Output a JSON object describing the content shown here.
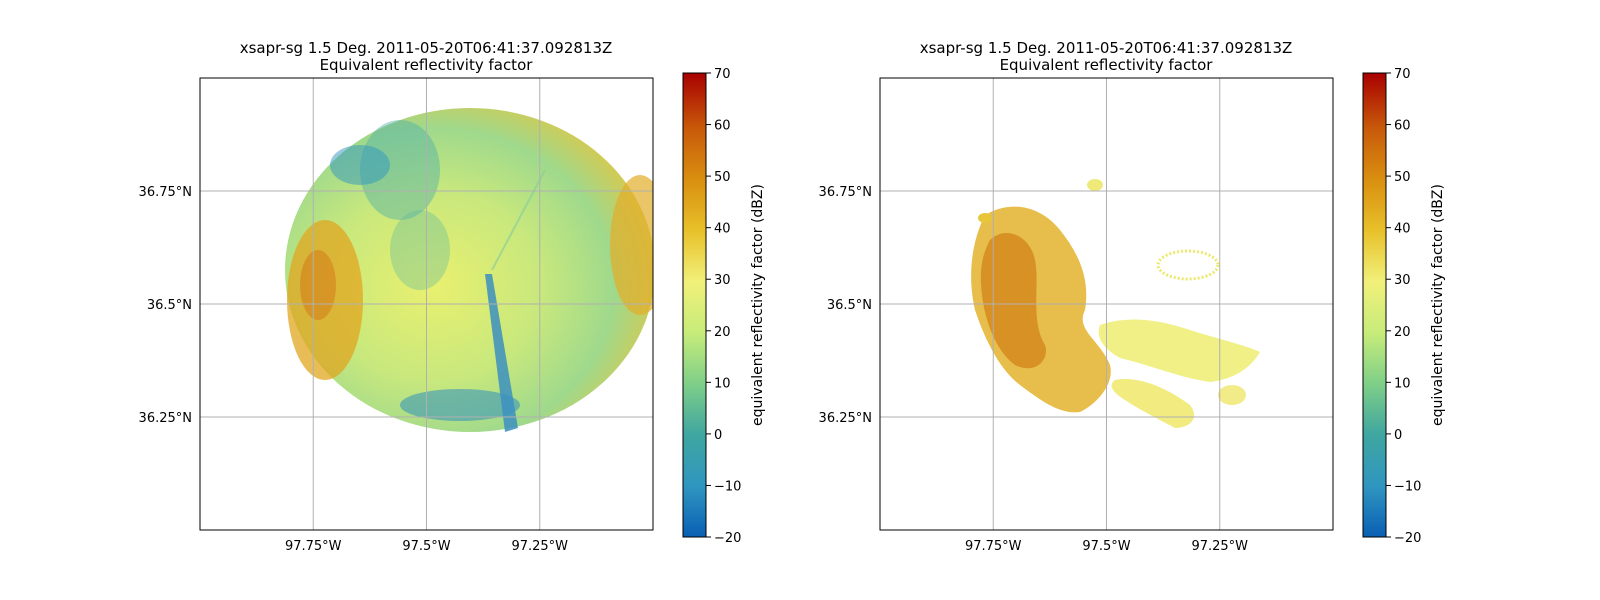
{
  "chart_data": [
    {
      "type": "heatmap",
      "title": "xsapr-sg 1.5 Deg. 2011-05-20T06:41:37.092813Z",
      "subtitle": "Equivalent reflectivity factor",
      "xlabel": "",
      "ylabel": "",
      "x_ticks": [
        "97.75°W",
        "97.5°W",
        "97.25°W"
      ],
      "x_tick_values": [
        -97.75,
        -97.5,
        -97.25
      ],
      "y_ticks": [
        "36.75°N",
        "36.5°N",
        "36.25°N"
      ],
      "y_tick_values": [
        36.75,
        36.5,
        36.25
      ],
      "xlim": [
        -98.0,
        -97.0
      ],
      "ylim": [
        36.0,
        37.0
      ],
      "grid": true,
      "colorbar": {
        "label": "equivalent reflectivity factor (dBZ)",
        "ticks": [
          "70",
          "60",
          "50",
          "40",
          "30",
          "20",
          "10",
          "0",
          "−10",
          "−20"
        ],
        "range": [
          -20,
          70
        ]
      },
      "radar_coverage": {
        "center_lon": -97.36,
        "center_lat": 36.45,
        "radius_deg": 0.47,
        "typical_dbz": [
          5,
          35
        ]
      }
    },
    {
      "type": "heatmap",
      "title": "xsapr-sg 1.5 Deg. 2011-05-20T06:41:37.092813Z",
      "subtitle": "Equivalent reflectivity factor",
      "xlabel": "",
      "ylabel": "",
      "x_ticks": [
        "97.75°W",
        "97.5°W",
        "97.25°W"
      ],
      "x_tick_values": [
        -97.75,
        -97.5,
        -97.25
      ],
      "y_ticks": [
        "36.75°N",
        "36.5°N",
        "36.25°N"
      ],
      "y_tick_values": [
        36.75,
        36.5,
        36.25
      ],
      "xlim": [
        -98.0,
        -97.0
      ],
      "ylim": [
        36.0,
        37.0
      ],
      "grid": true,
      "colorbar": {
        "label": "equivalent reflectivity factor (dBZ)",
        "ticks": [
          "70",
          "60",
          "50",
          "40",
          "30",
          "20",
          "10",
          "0",
          "−10",
          "−20"
        ],
        "range": [
          -20,
          70
        ]
      },
      "radar_coverage": {
        "center_lon": -97.36,
        "center_lat": 36.45,
        "radius_deg": 0.47,
        "typical_dbz": [
          20,
          40
        ]
      }
    }
  ],
  "colors": {
    "colormap": [
      "#0a5fb4",
      "#2f96c0",
      "#3fa6a0",
      "#7fcf88",
      "#c7ec7a",
      "#f1f07a",
      "#e8c12a",
      "#d98f10",
      "#c85a0a",
      "#a80000"
    ],
    "grid": "#b0b0b0",
    "axis": "#000000"
  }
}
